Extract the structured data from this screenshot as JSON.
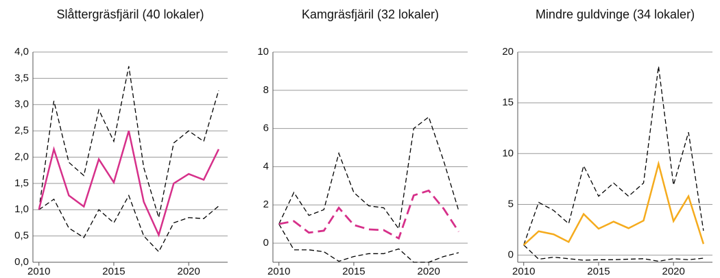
{
  "chart_data": [
    {
      "type": "line",
      "title": "Slåttergräsfjäril (40 lokaler)",
      "x": [
        2010,
        2011,
        2012,
        2013,
        2014,
        2015,
        2016,
        2017,
        2018,
        2019,
        2020,
        2021,
        2022
      ],
      "xlim": [
        2009.6,
        2022.6
      ],
      "xticks": [
        2010,
        2015,
        2020
      ],
      "ylim": [
        0,
        4
      ],
      "yticks": [
        {
          "value": 0,
          "label": "0,0"
        },
        {
          "value": 0.5,
          "label": "0,5"
        },
        {
          "value": 1,
          "label": "1,0"
        },
        {
          "value": 1.5,
          "label": "1,5"
        },
        {
          "value": 2,
          "label": "2,0"
        },
        {
          "value": 2.5,
          "label": "2,5"
        },
        {
          "value": 3,
          "label": "3,0"
        },
        {
          "value": 3.5,
          "label": "3,5"
        },
        {
          "value": 4,
          "label": "4,0"
        }
      ],
      "grid": true,
      "series": [
        {
          "color": "#000000",
          "style": "dashed",
          "values": [
            1.0,
            3.07,
            1.9,
            1.65,
            2.9,
            2.3,
            3.73,
            1.8,
            0.85,
            2.27,
            2.5,
            2.3,
            3.27
          ]
        },
        {
          "color": "#000000",
          "style": "dashed",
          "values": [
            1.0,
            1.2,
            0.65,
            0.47,
            1.0,
            0.75,
            1.27,
            0.5,
            0.2,
            0.75,
            0.85,
            0.83,
            1.07
          ]
        },
        {
          "color": "#d6308a",
          "style": "solid",
          "values": [
            1.0,
            2.15,
            1.27,
            1.06,
            1.96,
            1.52,
            2.5,
            1.15,
            0.52,
            1.5,
            1.68,
            1.57,
            2.15
          ]
        }
      ]
    },
    {
      "type": "line",
      "title": "Kamgräsfjäril (32 lokaler)",
      "x": [
        2010,
        2011,
        2012,
        2013,
        2014,
        2015,
        2016,
        2017,
        2018,
        2019,
        2020,
        2021,
        2022
      ],
      "xlim": [
        2009.6,
        2022.6
      ],
      "xticks": [
        2010,
        2015,
        2020
      ],
      "ylim": [
        -1,
        10
      ],
      "yticks": [
        0,
        2,
        4,
        6,
        8,
        10
      ],
      "grid": true,
      "series": [
        {
          "color": "#000000",
          "style": "dashed",
          "values": [
            1.0,
            2.65,
            1.45,
            1.75,
            4.7,
            2.65,
            1.95,
            1.85,
            0.75,
            6.0,
            6.6,
            4.3,
            1.7
          ]
        },
        {
          "color": "#000000",
          "style": "dashed",
          "values": [
            1.0,
            -0.35,
            -0.35,
            -0.45,
            -0.95,
            -0.7,
            -0.55,
            -0.55,
            -0.3,
            -1.0,
            -1.0,
            -0.7,
            -0.5
          ]
        },
        {
          "color": "#d6308a",
          "style": "longdash",
          "values": [
            1.0,
            1.15,
            0.55,
            0.65,
            1.85,
            0.95,
            0.72,
            0.68,
            0.25,
            2.5,
            2.75,
            1.8,
            0.6
          ]
        }
      ]
    },
    {
      "type": "line",
      "title": "Mindre guldvinge (34 lokaler)",
      "x": [
        2010,
        2011,
        2012,
        2013,
        2014,
        2015,
        2016,
        2017,
        2018,
        2019,
        2020,
        2021,
        2022
      ],
      "xlim": [
        2009.6,
        2022.6
      ],
      "xticks": [
        2010,
        2015,
        2020
      ],
      "ylim": [
        -0.7,
        20
      ],
      "yticks": [
        0,
        5,
        10,
        15,
        20
      ],
      "grid": true,
      "series": [
        {
          "color": "#000000",
          "style": "dashed",
          "values": [
            1.0,
            5.2,
            4.4,
            3.1,
            8.8,
            5.8,
            7.1,
            5.8,
            7.1,
            18.6,
            6.9,
            12.1,
            2.4
          ]
        },
        {
          "color": "#000000",
          "style": "dashed",
          "values": [
            1.0,
            -0.4,
            -0.2,
            -0.35,
            -0.5,
            -0.45,
            -0.45,
            -0.4,
            -0.35,
            -0.6,
            -0.35,
            -0.45,
            -0.3
          ]
        },
        {
          "color": "#f5ab1d",
          "style": "solid",
          "values": [
            1.0,
            2.35,
            2.05,
            1.3,
            4.05,
            2.6,
            3.3,
            2.65,
            3.4,
            9.0,
            3.35,
            5.8,
            1.1
          ]
        }
      ]
    }
  ]
}
